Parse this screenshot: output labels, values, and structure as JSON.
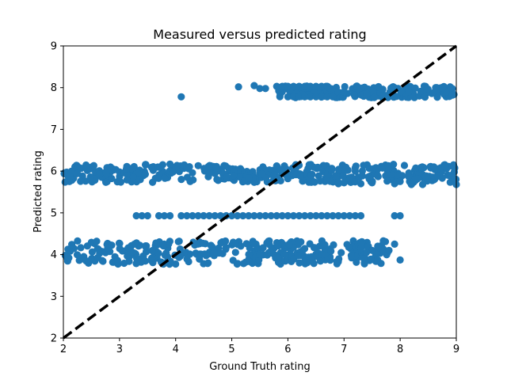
{
  "chart_data": {
    "type": "scatter",
    "title": "Measured versus predicted rating",
    "xlabel": "Ground Truth rating",
    "ylabel": "Predicted rating",
    "xlim": [
      2,
      9
    ],
    "ylim": [
      2,
      9
    ],
    "xticks": [
      "2",
      "3",
      "4",
      "5",
      "6",
      "7",
      "8",
      "9"
    ],
    "yticks": [
      "2",
      "3",
      "4",
      "5",
      "6",
      "7",
      "8",
      "9"
    ],
    "grid": false,
    "marker_color": "#1f77b4",
    "reference_line": {
      "style": "dashed",
      "color": "#000000",
      "from": [
        2,
        2
      ],
      "to": [
        9,
        9
      ]
    },
    "bands": [
      {
        "x": [
          2.0,
          7.8
        ],
        "y_center": 4.05,
        "y_spread": 0.28
      },
      {
        "x": [
          2.0,
          9.0
        ],
        "y_center": 5.95,
        "y_spread": 0.22
      },
      {
        "x": [
          5.8,
          9.0
        ],
        "y_center": 7.9,
        "y_spread": 0.14
      }
    ],
    "points": [
      [
        4.1,
        7.78
      ],
      [
        5.12,
        8.02
      ],
      [
        5.4,
        8.05
      ],
      [
        5.5,
        7.98
      ],
      [
        5.6,
        7.98
      ],
      [
        5.8,
        8.03
      ],
      [
        5.9,
        8.03
      ],
      [
        6.0,
        8.03
      ],
      [
        6.1,
        8.03
      ],
      [
        6.2,
        8.03
      ],
      [
        6.3,
        8.03
      ],
      [
        6.4,
        8.03
      ],
      [
        6.5,
        8.03
      ],
      [
        6.6,
        8.03
      ],
      [
        6.7,
        8.03
      ],
      [
        6.0,
        7.78
      ],
      [
        6.1,
        7.78
      ],
      [
        6.2,
        7.78
      ],
      [
        6.3,
        7.78
      ],
      [
        6.4,
        7.78
      ],
      [
        6.5,
        7.78
      ],
      [
        6.6,
        7.78
      ],
      [
        6.7,
        7.78
      ],
      [
        6.8,
        7.78
      ],
      [
        3.3,
        4.93
      ],
      [
        3.4,
        4.93
      ],
      [
        3.5,
        4.93
      ],
      [
        3.7,
        4.93
      ],
      [
        3.8,
        4.93
      ],
      [
        3.9,
        4.93
      ],
      [
        4.1,
        4.93
      ],
      [
        4.2,
        4.93
      ],
      [
        4.3,
        4.93
      ],
      [
        4.4,
        4.93
      ],
      [
        4.5,
        4.93
      ],
      [
        4.6,
        4.93
      ],
      [
        4.7,
        4.93
      ],
      [
        4.8,
        4.93
      ],
      [
        4.9,
        4.93
      ],
      [
        5.0,
        4.93
      ],
      [
        5.1,
        4.93
      ],
      [
        5.2,
        4.93
      ],
      [
        5.3,
        4.93
      ],
      [
        5.4,
        4.93
      ],
      [
        5.5,
        4.93
      ],
      [
        5.6,
        4.93
      ],
      [
        5.7,
        4.93
      ],
      [
        5.8,
        4.93
      ],
      [
        5.9,
        4.93
      ],
      [
        6.0,
        4.93
      ],
      [
        6.1,
        4.93
      ],
      [
        6.2,
        4.93
      ],
      [
        6.3,
        4.93
      ],
      [
        6.4,
        4.93
      ],
      [
        6.5,
        4.93
      ],
      [
        6.6,
        4.93
      ],
      [
        6.7,
        4.93
      ],
      [
        6.8,
        4.93
      ],
      [
        6.9,
        4.93
      ],
      [
        7.0,
        4.93
      ],
      [
        7.1,
        4.93
      ],
      [
        7.2,
        4.93
      ],
      [
        7.3,
        4.93
      ],
      [
        7.9,
        4.93
      ],
      [
        8.0,
        4.93
      ],
      [
        7.5,
        4.1
      ],
      [
        7.6,
        4.2
      ],
      [
        7.7,
        4.33
      ],
      [
        7.3,
        4.15
      ],
      [
        7.4,
        4.05
      ],
      [
        7.8,
        4.1
      ],
      [
        8.0,
        3.87
      ],
      [
        7.6,
        3.87
      ],
      [
        7.9,
        4.25
      ],
      [
        7.9,
        5.7
      ],
      [
        8.0,
        5.75
      ],
      [
        8.2,
        5.68
      ],
      [
        8.4,
        5.68
      ],
      [
        9.0,
        5.68
      ],
      [
        8.6,
        6.1
      ],
      [
        8.8,
        6.1
      ],
      [
        8.95,
        6.15
      ],
      [
        6.9,
        5.7
      ],
      [
        7.0,
        5.72
      ],
      [
        7.3,
        5.7
      ],
      [
        7.5,
        5.72
      ]
    ]
  }
}
